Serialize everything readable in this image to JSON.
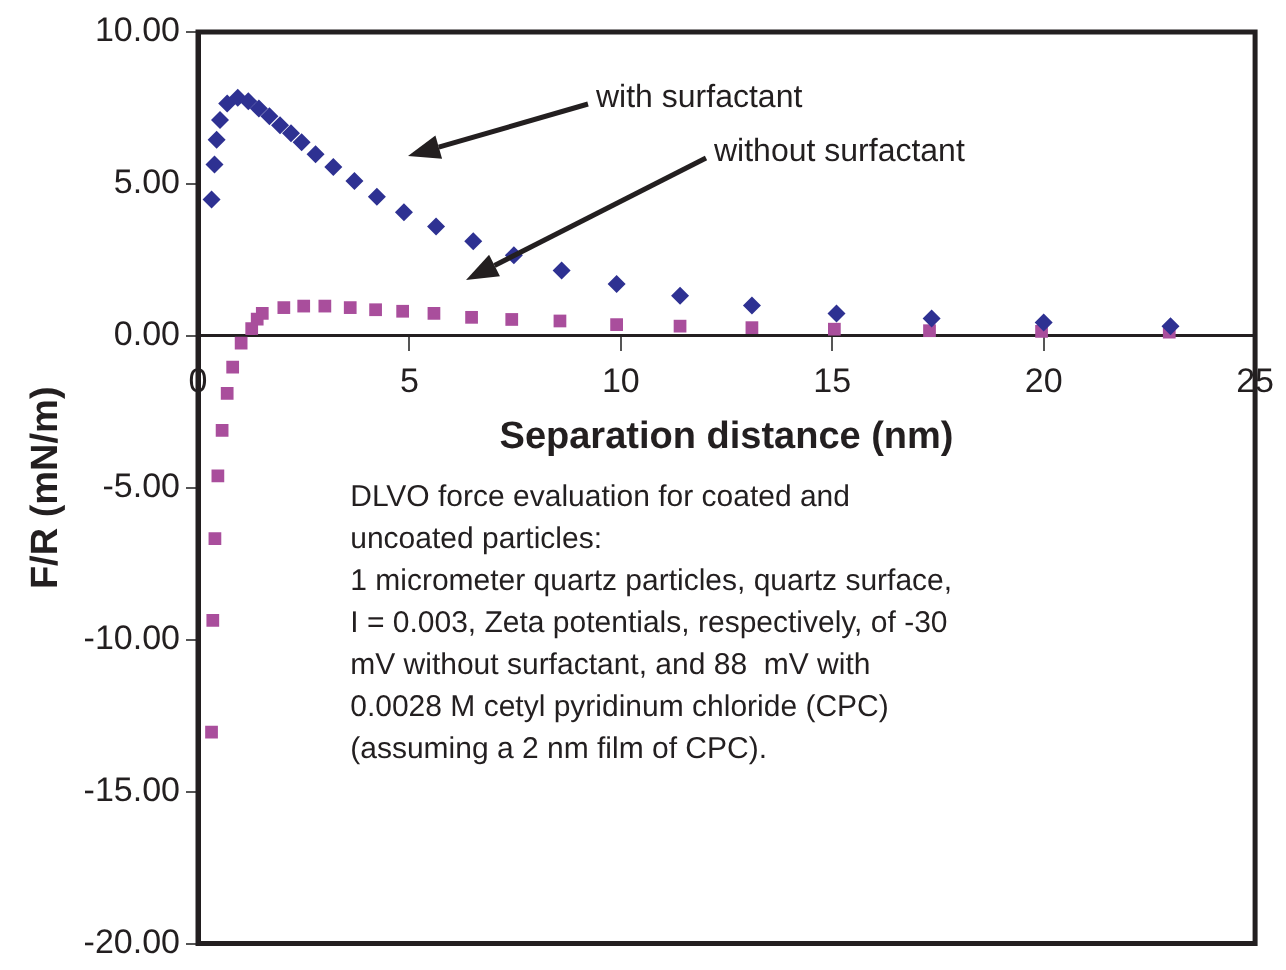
{
  "chart_data": {
    "type": "scatter",
    "xlabel": "Separation distance (nm)",
    "ylabel": "F/R (mN/m)",
    "xlim": [
      0,
      25
    ],
    "xticks": [
      0,
      5,
      10,
      15,
      20,
      25
    ],
    "ylim": [
      -20,
      10
    ],
    "yticks": [
      {
        "value": -20,
        "label": "-20.00"
      },
      {
        "value": -15,
        "label": "-15.00"
      },
      {
        "value": -10,
        "label": "-10.00"
      },
      {
        "value": -5,
        "label": "-5.00"
      },
      {
        "value": 0,
        "label": "0.00"
      },
      {
        "value": 5,
        "label": "5.00"
      },
      {
        "value": 10,
        "label": "10.00"
      }
    ],
    "grid": false,
    "legend": false,
    "series": [
      {
        "color": "#2e3192",
        "marker": "diamond",
        "x": [
          0.32,
          0.39,
          0.44,
          0.52,
          0.69,
          0.94,
          1.19,
          1.44,
          1.69,
          1.94,
          2.2,
          2.45,
          2.78,
          3.2,
          3.7,
          4.23,
          4.87,
          5.63,
          6.51,
          7.47,
          8.6,
          9.9,
          11.4,
          13.1,
          15.1,
          17.35,
          20.0,
          23.0
        ],
        "values": [
          4.49,
          5.64,
          6.45,
          7.1,
          7.65,
          7.84,
          7.72,
          7.48,
          7.23,
          6.93,
          6.67,
          6.37,
          5.98,
          5.56,
          5.1,
          4.58,
          4.07,
          3.6,
          3.11,
          2.65,
          2.15,
          1.71,
          1.32,
          1.0,
          0.74,
          0.57,
          0.44,
          0.32
        ]
      },
      {
        "color": "#a94e9c",
        "marker": "square",
        "x": [
          0.32,
          0.35,
          0.4,
          0.47,
          0.57,
          0.69,
          0.82,
          1.02,
          1.27,
          1.4,
          1.52,
          2.03,
          2.5,
          3.0,
          3.6,
          4.2,
          4.84,
          5.58,
          6.47,
          7.42,
          8.56,
          9.9,
          11.4,
          13.1,
          15.05,
          17.3,
          19.95,
          22.97
        ],
        "values": [
          -13.04,
          -9.36,
          -6.67,
          -4.61,
          -3.11,
          -1.89,
          -1.03,
          -0.24,
          0.24,
          0.55,
          0.74,
          0.93,
          0.98,
          0.98,
          0.93,
          0.86,
          0.81,
          0.74,
          0.61,
          0.54,
          0.49,
          0.37,
          0.32,
          0.27,
          0.22,
          0.17,
          0.15,
          0.12
        ]
      }
    ],
    "annotations": [
      "with surfactant",
      "without surfactant",
      "DLVO force evaluation for coated and\nuncoated particles:\n1 micrometer quartz particles, quartz surface,\nI = 0.003, Zeta potentials, respectively, of -30\nmV without surfactant, and 88  mV with\n0.0028 M cetyl pyridinum chloride (CPC)\n(assuming a 2 nm film of CPC)."
    ]
  }
}
